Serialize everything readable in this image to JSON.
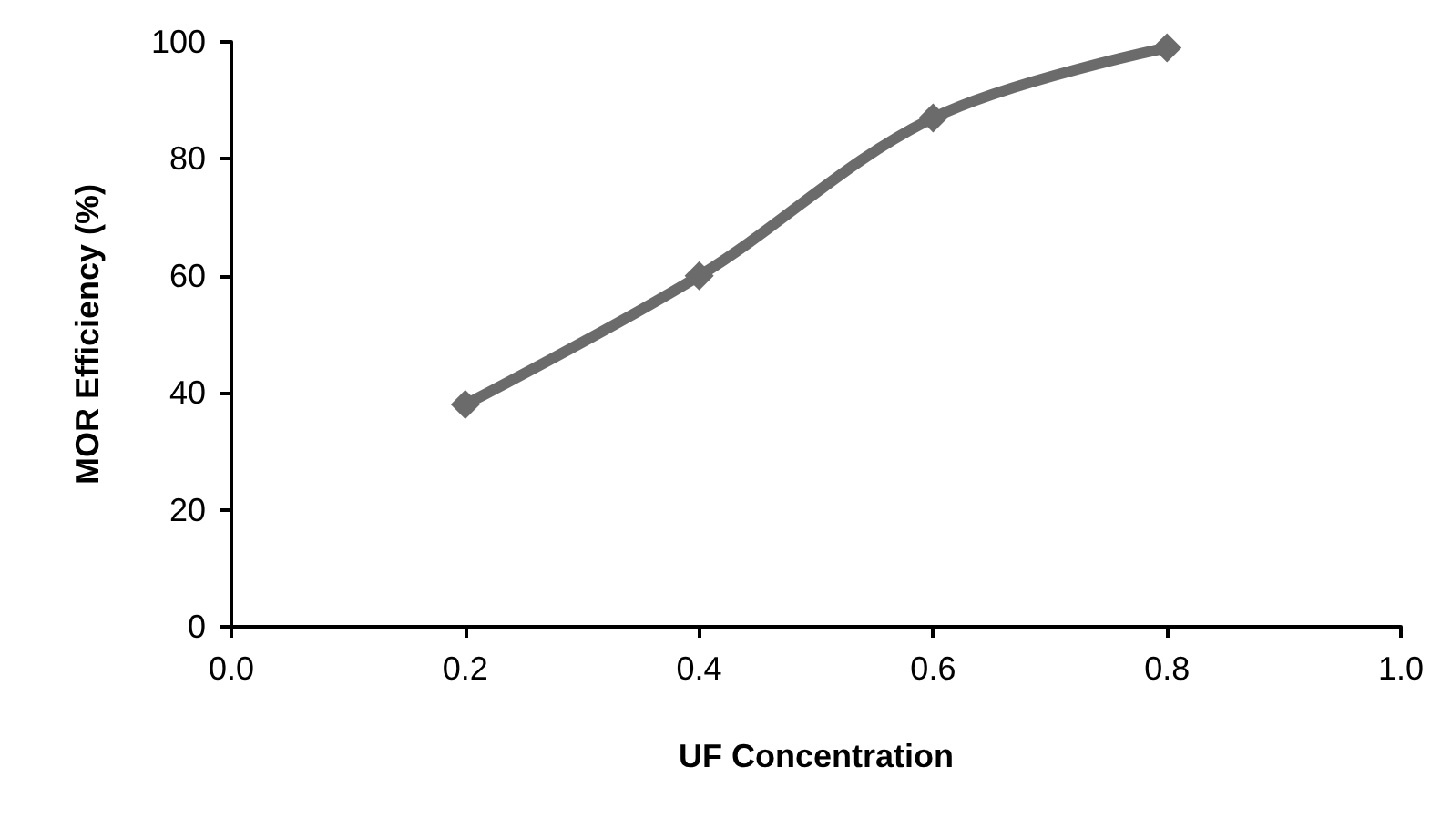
{
  "chart_data": {
    "type": "line",
    "xlabel": "UF Concentration",
    "ylabel": "MOR Efficiency (%)",
    "x": [
      0.2,
      0.4,
      0.6,
      0.8
    ],
    "series": [
      {
        "color": "#6b6b6b",
        "values": [
          38,
          60,
          87,
          99
        ]
      }
    ],
    "xlim": [
      0,
      1
    ],
    "xticks": [
      {
        "value": 0,
        "label": "0.0"
      },
      {
        "value": 0.2,
        "label": "0.2"
      },
      {
        "value": 0.4,
        "label": "0.4"
      },
      {
        "value": 0.6,
        "label": "0.6"
      },
      {
        "value": 0.8,
        "label": "0.8"
      },
      {
        "value": 1,
        "label": "1.0"
      }
    ],
    "ylim": [
      0,
      100
    ],
    "yticks": [
      0,
      20,
      40,
      60,
      80,
      100
    ],
    "grid": false,
    "marker": "diamond",
    "line_style": "solid"
  }
}
